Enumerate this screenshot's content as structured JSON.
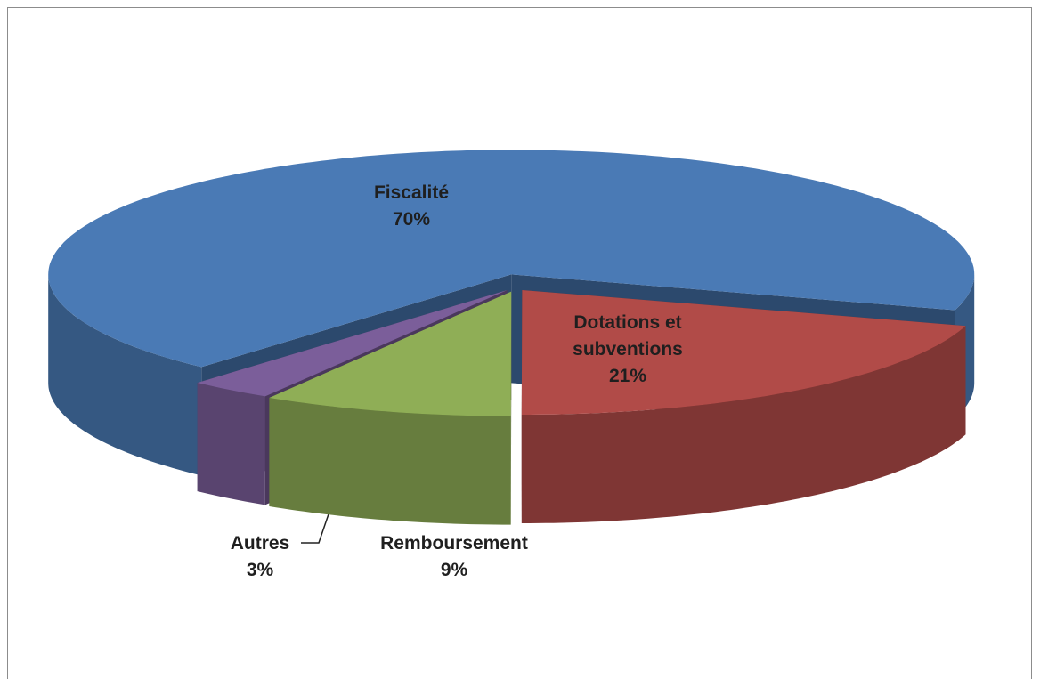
{
  "chart_data": {
    "type": "pie3d",
    "categories": [
      "Fiscalité",
      "Dotations et subventions",
      "Remboursement",
      "Autres"
    ],
    "values": [
      70,
      21,
      9,
      3
    ],
    "value_labels": [
      "70%",
      "21%",
      "9%",
      "3%"
    ],
    "colors": [
      "#4a7ab5",
      "#b14b48",
      "#8fae56",
      "#7b5e9a"
    ]
  }
}
